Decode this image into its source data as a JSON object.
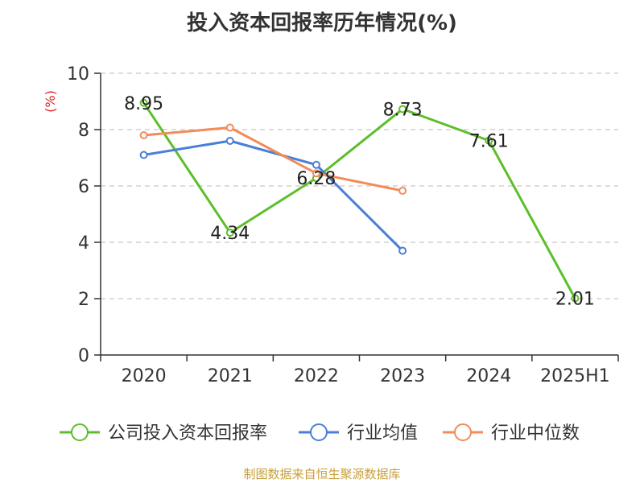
{
  "chart_data": {
    "type": "line",
    "title": "投入资本回报率历年情况(%)",
    "ylabel": "(%)",
    "ylim": [
      0,
      10
    ],
    "yticks": [
      0,
      2,
      4,
      6,
      8,
      10
    ],
    "grid": true,
    "legend_position": "bottom",
    "categories": [
      "2020",
      "2021",
      "2022",
      "2023",
      "2024",
      "2025H1"
    ],
    "series": [
      {
        "name": "公司投入资本回报率",
        "color": "#5cbf2a",
        "values": [
          8.95,
          4.34,
          6.28,
          8.73,
          7.61,
          2.01
        ],
        "labels": [
          "8.95",
          "4.34",
          "6.28",
          "8.73",
          "7.61",
          "2.01"
        ]
      },
      {
        "name": "行业均值",
        "color": "#4a7fd8",
        "values": [
          7.1,
          7.6,
          6.75,
          3.7,
          null,
          null
        ]
      },
      {
        "name": "行业中位数",
        "color": "#f28c5a",
        "values": [
          7.8,
          8.07,
          6.45,
          5.83,
          null,
          null
        ]
      }
    ]
  },
  "source": "制图数据来自恒生聚源数据库"
}
